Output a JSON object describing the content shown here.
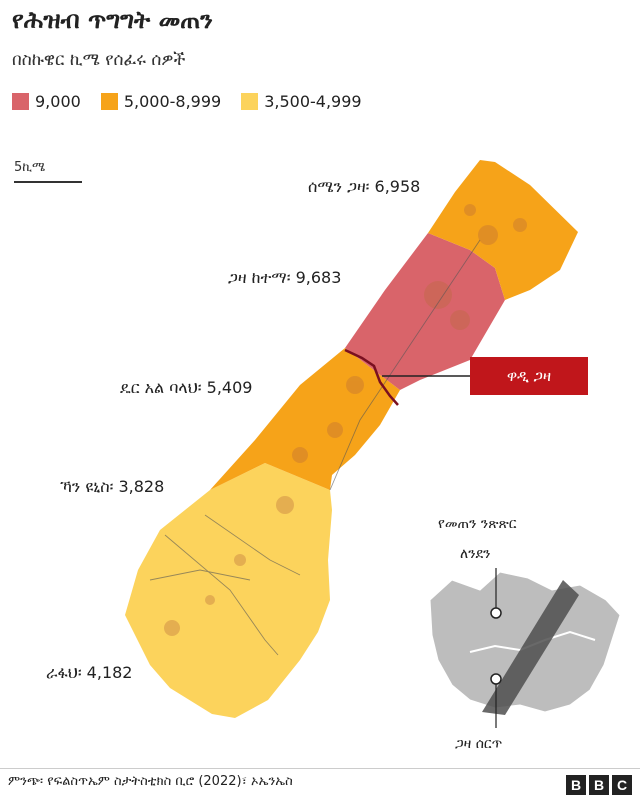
{
  "header": {
    "title": "የሕዝብ ጥግግት መጠን",
    "subtitle": "በስኩዌር ኪሜ የሰፈሩ ሰዎች"
  },
  "legend": [
    {
      "label": "9,000",
      "color": "#d9646a"
    },
    {
      "label": "5,000-8,999",
      "color": "#f6a319"
    },
    {
      "label": "3,500-4,999",
      "color": "#fcd35c"
    }
  ],
  "scale_label": "5ኪሜ",
  "regions": {
    "north_gaza": "ሰሜን ጋዛ፡ 6,958",
    "gaza_city": "ጋዛ ከተማ፡ 9,683",
    "deir_al_balah": "ዴር አል ባላህ፡ 5,409",
    "khan_younis": "ኻን ዩኒስ፡ 3,828",
    "rafah": "ራፋህ፡ 4,182"
  },
  "wadi_label": "ዋዲ ጋዛ",
  "inset": {
    "title_line1": "የመጠን ንጽጽር",
    "title_line2": "ለንደን",
    "gaza_strip": "ጋዛ ሰርጥ"
  },
  "source": "ምንጭ፡ የፍልስጥኤም ስታትስቲክስ ቢሮ (2022)፣ ኦኤንኤስ",
  "brand": [
    "B",
    "B",
    "C"
  ]
}
